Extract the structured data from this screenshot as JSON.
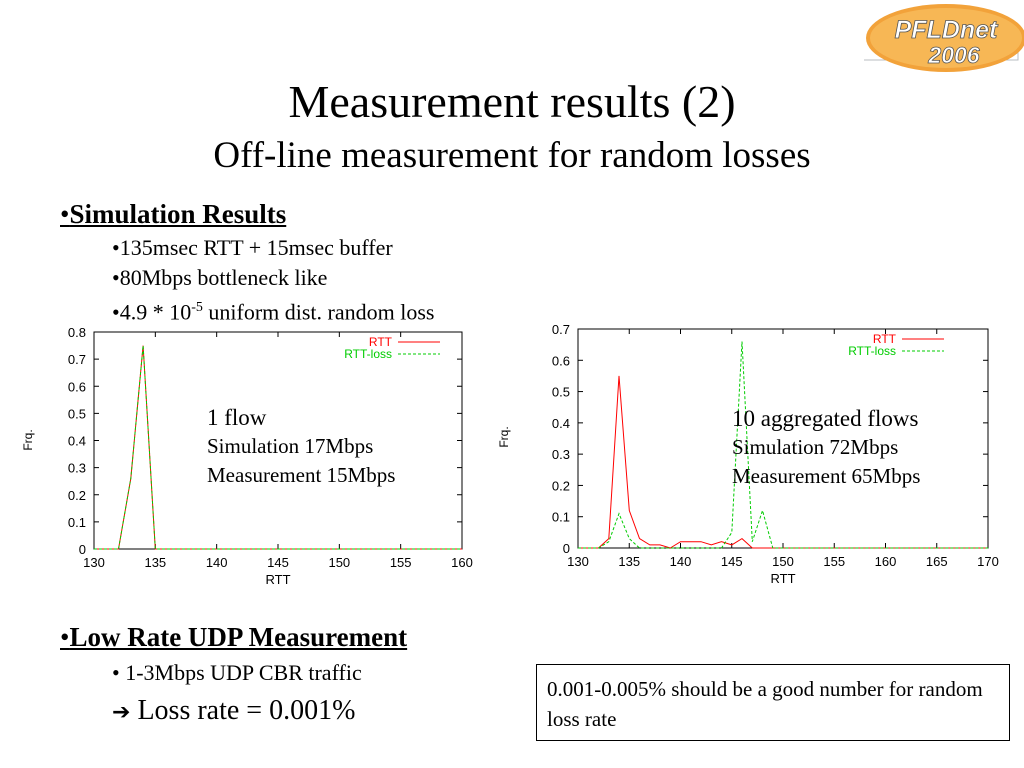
{
  "slide": {
    "title": "Measurement results (2)",
    "subtitle": "Off-line measurement for random losses",
    "section1": {
      "bullet": "•",
      "label": "Simulation Results",
      "items": [
        "•135msec RTT + 15msec buffer",
        "•80Mbps bottleneck like"
      ],
      "loss_item": {
        "prefix": "•4.9 * 10",
        "exponent": "-5",
        "suffix": " uniform dist. random loss"
      }
    },
    "section2": {
      "bullet": "•",
      "label": "Low Rate UDP Measurement",
      "item": "• 1-3Mbps UDP CBR traffic",
      "arrow": "➔",
      "loss_rate": "Loss rate = 0.001%"
    },
    "answer_box": "0.001-0.005% should be a good number for random loss rate",
    "logo": {
      "line1": "PFLDnet",
      "line2": "2006"
    }
  },
  "colors": {
    "rtt": "#ff0000",
    "rtt_loss": "#00cc00",
    "overlap": "#998000"
  },
  "chart_data": [
    {
      "type": "line",
      "xlabel": "RTT",
      "ylabel": "Frq.",
      "xlim": [
        130,
        160
      ],
      "ylim": [
        0,
        0.8
      ],
      "xticks": [
        130,
        135,
        140,
        145,
        150,
        155,
        160
      ],
      "yticks": [
        0,
        0.1,
        0.2,
        0.3,
        0.4,
        0.5,
        0.6,
        0.7,
        0.8
      ],
      "legend": "top-right",
      "annotation": {
        "title": "1 flow",
        "lines": [
          "Simulation 17Mbps",
          "Measurement 15Mbps"
        ]
      },
      "series": [
        {
          "name": "RTT",
          "x": [
            130,
            132,
            133,
            134,
            135,
            136,
            140,
            141,
            160
          ],
          "y": [
            0,
            0,
            0.26,
            0.75,
            0,
            0,
            0,
            0,
            0
          ]
        },
        {
          "name": "RTT-loss",
          "x": [
            130,
            132,
            133,
            134,
            135,
            136,
            160
          ],
          "y": [
            0,
            0,
            0.26,
            0.75,
            0,
            0,
            0
          ]
        }
      ]
    },
    {
      "type": "line",
      "xlabel": "RTT",
      "ylabel": "Frq.",
      "xlim": [
        130,
        170
      ],
      "ylim": [
        0,
        0.7
      ],
      "xticks": [
        130,
        135,
        140,
        145,
        150,
        155,
        160,
        165,
        170
      ],
      "yticks": [
        0,
        0.1,
        0.2,
        0.3,
        0.4,
        0.5,
        0.6,
        0.7
      ],
      "legend": "top-right",
      "annotation": {
        "title": "10 aggregated flows",
        "lines": [
          "Simulation 72Mbps",
          "Measurement 65Mbps"
        ]
      },
      "series": [
        {
          "name": "RTT",
          "x": [
            130,
            132,
            133,
            134,
            135,
            136,
            137,
            138,
            139,
            140,
            141,
            142,
            143,
            144,
            145,
            146,
            147,
            170
          ],
          "y": [
            0,
            0,
            0.03,
            0.55,
            0.12,
            0.03,
            0.01,
            0.01,
            0,
            0.02,
            0.02,
            0.02,
            0.01,
            0.02,
            0.01,
            0.03,
            0,
            0
          ]
        },
        {
          "name": "RTT-loss",
          "x": [
            130,
            132,
            133,
            134,
            135,
            136,
            144,
            145,
            146,
            147,
            148,
            149,
            170
          ],
          "y": [
            0,
            0,
            0.02,
            0.11,
            0.03,
            0,
            0,
            0.05,
            0.66,
            0.02,
            0.12,
            0,
            0
          ]
        }
      ]
    }
  ]
}
